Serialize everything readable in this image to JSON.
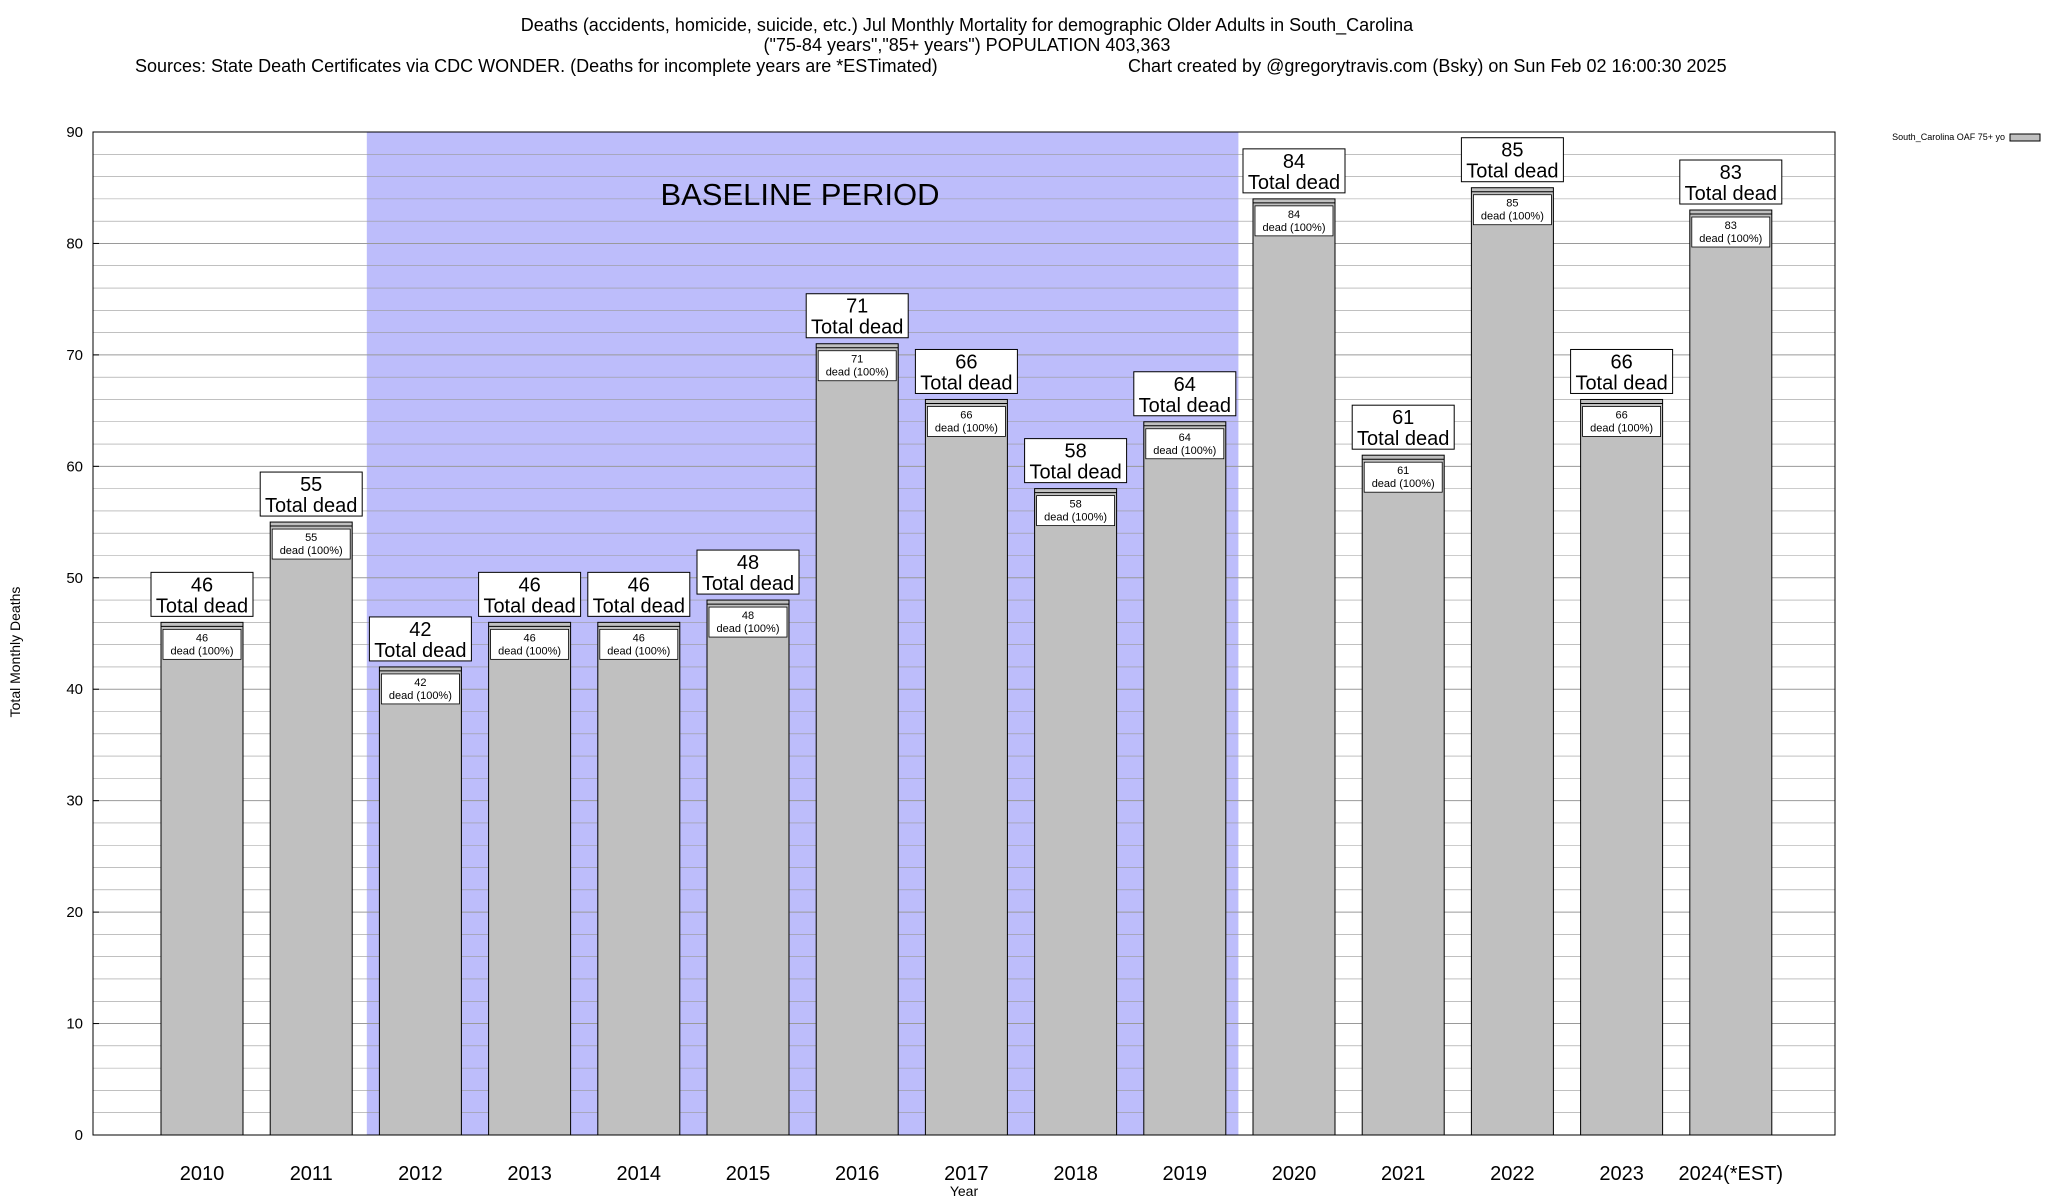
{
  "chart_data": {
    "type": "bar",
    "title_lines": [
      "Deaths (accidents, homicide, suicide, etc.) Jul Monthly Mortality for demographic Older Adults in South_Carolina",
      "(\"75-84 years\",\"85+ years\") POPULATION 403,363"
    ],
    "sources_text": "Sources: State Death Certificates via CDC WONDER. (Deaths for incomplete years are *ESTimated)",
    "credit_text": "Chart created by @gregorytravis.com (Bsky) on Sun Feb 02 16:00:30 2025",
    "xlabel": "Year",
    "ylabel": "Total Monthly Deaths",
    "ylim": [
      0,
      90
    ],
    "y_ticks": [
      0,
      10,
      20,
      30,
      40,
      50,
      60,
      70,
      80,
      90
    ],
    "y_minor_step": 2,
    "categories": [
      "2010",
      "2011",
      "2012",
      "2013",
      "2014",
      "2015",
      "2016",
      "2017",
      "2018",
      "2019",
      "2020",
      "2021",
      "2022",
      "2023",
      "2024(*EST)"
    ],
    "series": [
      {
        "name": "South_Carolina OAF 75+ yo",
        "values": [
          46,
          55,
          42,
          46,
          46,
          48,
          71,
          66,
          58,
          64,
          84,
          61,
          85,
          66,
          83
        ]
      }
    ],
    "total_label_suffix": "Total dead",
    "inner_label_suffix": "dead (100%)",
    "baseline": {
      "label": "BASELINE PERIOD",
      "from_category": "2012",
      "to_category": "2019"
    },
    "legend_position": "top-right",
    "grid": true,
    "colors": {
      "bar_fill": "#c0c0c0",
      "bar_stroke": "#000000",
      "baseline_fill": "#bdbdfb",
      "grid": "#9a9a9a",
      "label_box": "#ffffff"
    }
  }
}
